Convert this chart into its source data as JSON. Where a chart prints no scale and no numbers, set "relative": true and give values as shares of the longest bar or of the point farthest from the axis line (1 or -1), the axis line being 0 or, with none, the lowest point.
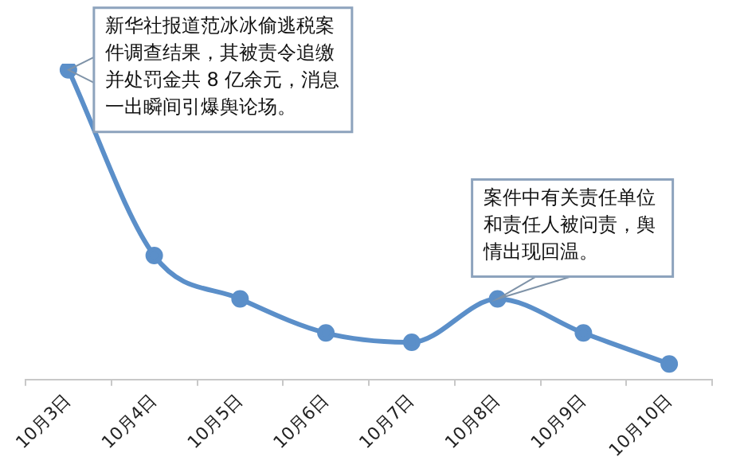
{
  "chart_data": {
    "type": "line",
    "relative": true,
    "categories": [
      "10月3日",
      "10月4日",
      "10月5日",
      "10月6日",
      "10月7日",
      "10月8日",
      "10月9日",
      "10月10日"
    ],
    "series": [
      {
        "color": "#5b8fc9",
        "values": [
          1,
          0.4,
          0.26,
          0.15,
          0.12,
          0.26,
          0.15,
          0.05
        ]
      }
    ],
    "marker": "circle",
    "legend": false,
    "annotations": [
      {
        "text": "新华社报道范冰冰偷逃税案件调查结果，其被责令追缴并处罚金共 8 亿余元，消息一出瞬间引爆舆论场。",
        "x": "10月3日",
        "y": 1
      },
      {
        "text": "案件中有关责任单位和责任人被问责，舆情出现回温。",
        "x": "10月8日",
        "y": 0.26
      }
    ]
  }
}
